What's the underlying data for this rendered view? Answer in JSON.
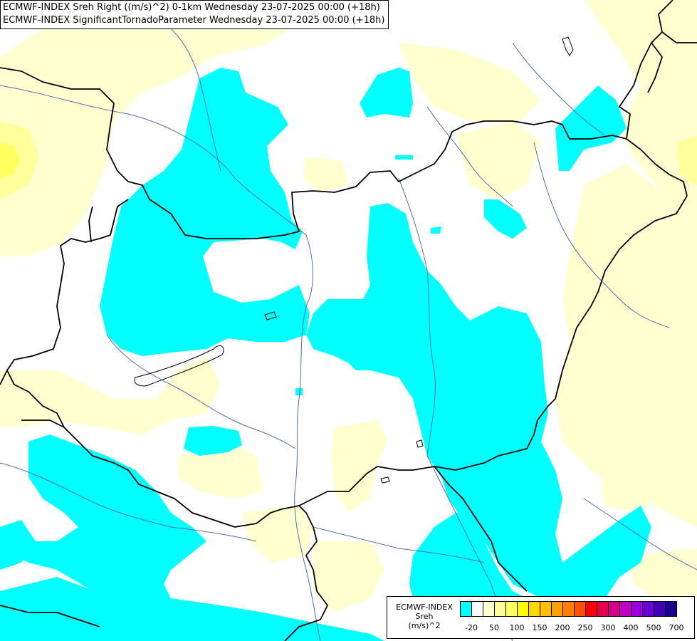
{
  "header": {
    "line1": "ECMWF-INDEX Sreh Right ((m/s)^2) 0-1km Wednesday 23-07-2025 00:00 (+18h)",
    "line2": "ECMWF-INDEX SignificantTornadoParameter Wednesday 23-07-2025 00:00 (+18h)"
  },
  "legend": {
    "title": "ECMWF-INDEX",
    "variable": "Sreh",
    "unit": "(m/s)^2",
    "colors": [
      "#00ffff",
      "#ffffff",
      "#ffffd0",
      "#ffff9c",
      "#ffff60",
      "#ffff00",
      "#ffd700",
      "#ffbf00",
      "#ff9f00",
      "#ff7f00",
      "#ff5000",
      "#ff0000",
      "#e6004c",
      "#d4008c",
      "#c000c0",
      "#9a00e0",
      "#6c00d8",
      "#4000b8",
      "#1e0090"
    ],
    "labels": [
      "-20",
      "50",
      "100",
      "150",
      "200",
      "250",
      "300",
      "400",
      "500",
      "700"
    ]
  },
  "map_colors": {
    "cyan": "#00ffff",
    "pale_yellow": "#ffffd0",
    "yellow_light": "#ffff9c",
    "yellow": "#ffff60",
    "border": "#000000",
    "river": "#4f6fa8"
  }
}
